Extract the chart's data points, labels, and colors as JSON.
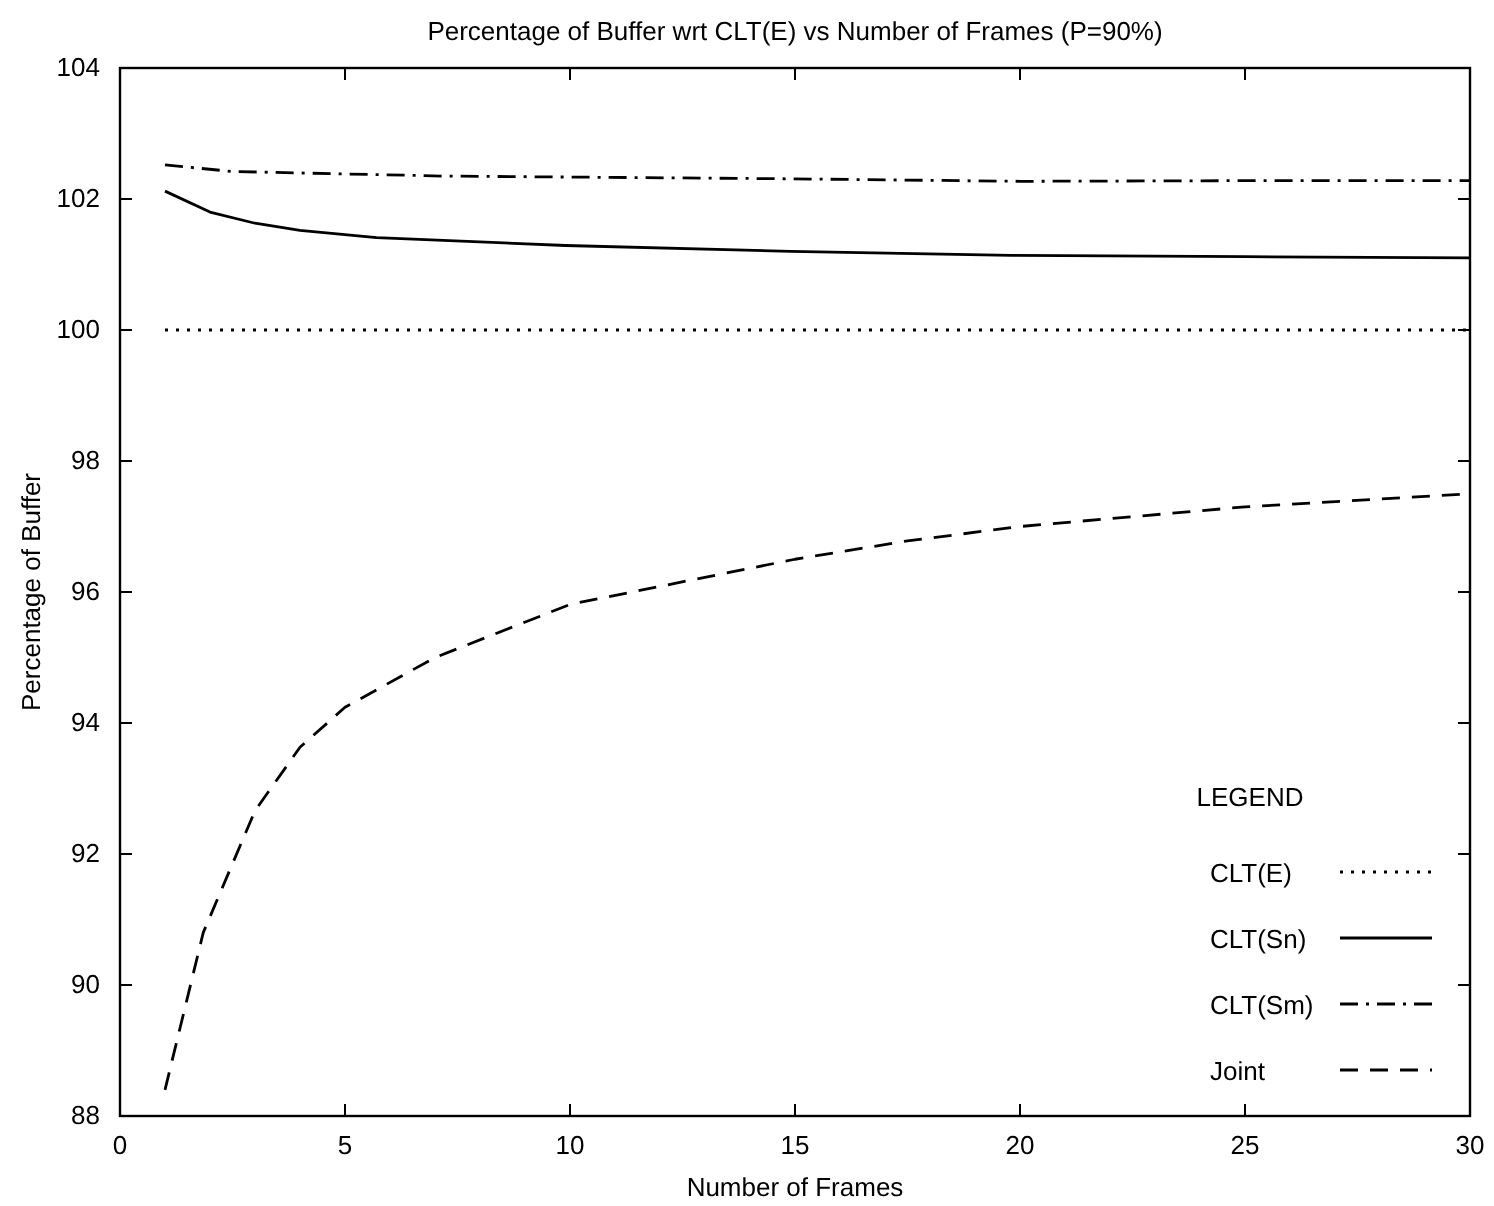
{
  "chart_data": {
    "type": "line",
    "title": "Percentage of Buffer wrt CLT(E) vs Number of Frames (P=90%)",
    "xlabel": "Number of Frames",
    "ylabel": "Percentage of Buffer",
    "legend_title": "LEGEND",
    "legend": "bottom right",
    "grid": false,
    "xlim": [
      0,
      30
    ],
    "xticks": [
      0,
      5,
      10,
      15,
      20,
      25,
      30
    ],
    "ylim": [
      88,
      104
    ],
    "yticks": [
      88,
      90,
      92,
      94,
      96,
      98,
      100,
      102,
      104
    ],
    "series": [
      {
        "name": "CLT(E)",
        "color": "#000000",
        "line_style": "dotted",
        "x": [
          1,
          30
        ],
        "values": [
          100,
          100
        ]
      },
      {
        "name": "CLT(Sn)",
        "color": "#000000",
        "line_style": "solid",
        "x": [
          1,
          2,
          3,
          4,
          5.7,
          9.9,
          14.9,
          19.8,
          25,
          30
        ],
        "values": [
          102.12,
          101.8,
          101.63,
          101.52,
          101.41,
          101.29,
          101.2,
          101.14,
          101.12,
          101.1
        ]
      },
      {
        "name": "CLT(Sm)",
        "color": "#000000",
        "line_style": "dashdot",
        "x": [
          1,
          2.5,
          7.2,
          14.6,
          20,
          25,
          30
        ],
        "values": [
          102.52,
          102.42,
          102.35,
          102.31,
          102.27,
          102.28,
          102.28
        ]
      },
      {
        "name": "Joint",
        "color": "#000000",
        "line_style": "dashed",
        "x": [
          1,
          1.85,
          3,
          4,
          5,
          7,
          10,
          15,
          17.5,
          20,
          25,
          30
        ],
        "values": [
          88.4,
          90.8,
          92.66,
          93.63,
          94.24,
          95,
          95.81,
          96.5,
          96.78,
          97,
          97.3,
          97.5
        ]
      }
    ]
  }
}
